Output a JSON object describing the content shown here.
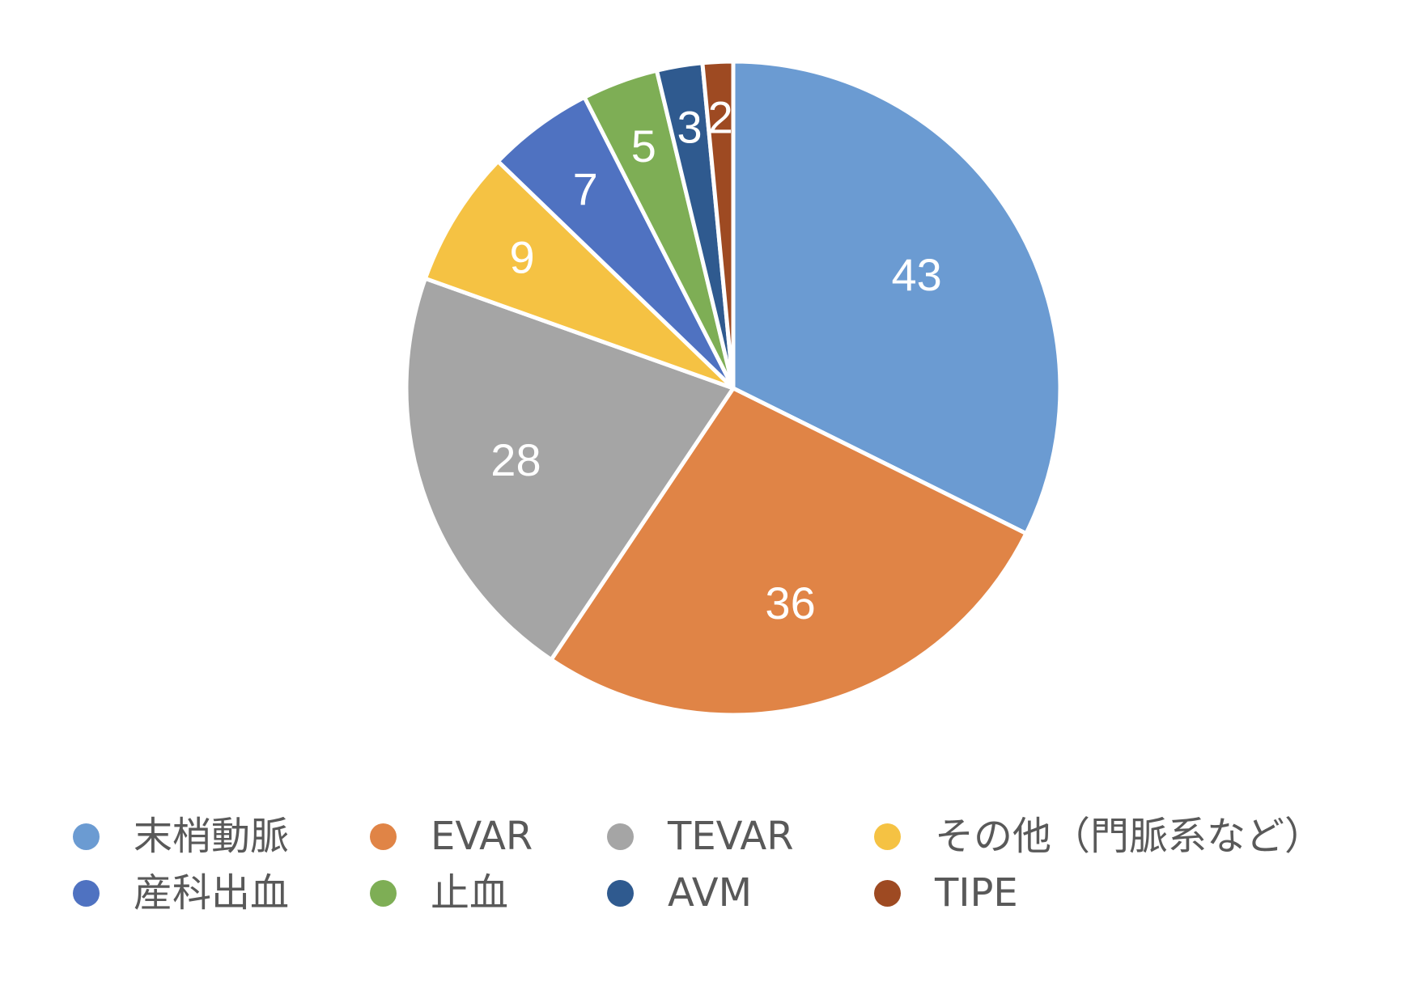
{
  "chart_data": {
    "type": "pie",
    "categories": [
      "末梢動脈",
      "EVAR",
      "TEVAR",
      "その他（門脈系など）",
      "産科出血",
      "止血",
      "AVM",
      "TIPE"
    ],
    "values": [
      43,
      36,
      28,
      9,
      7,
      5,
      3,
      2
    ],
    "colors": [
      "#6B9BD2",
      "#E08446",
      "#A5A5A5",
      "#F5C243",
      "#4F72C1",
      "#7EAE55",
      "#2F5A8F",
      "#9E4A22"
    ],
    "start_angle_deg": 0,
    "direction": "clockwise",
    "data_labels": [
      "43",
      "36",
      "28",
      "9",
      "7",
      "5",
      "3",
      "2"
    ],
    "legend_position": "bottom",
    "title": ""
  }
}
